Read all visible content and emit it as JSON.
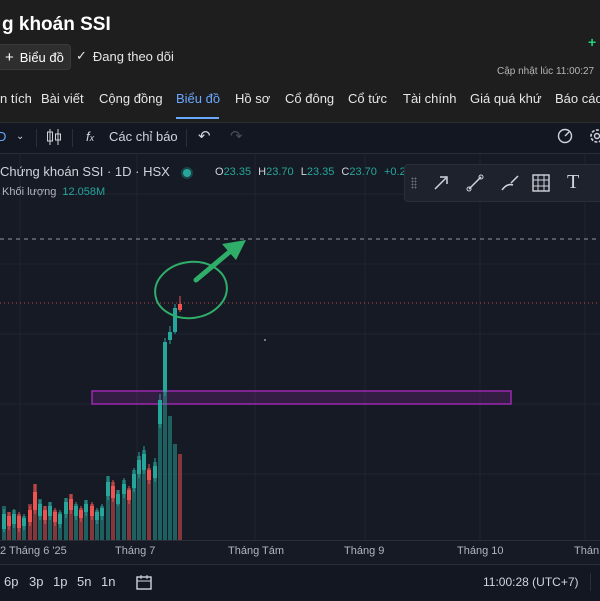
{
  "header": {
    "title": "g khoán SSI",
    "chart_button": "Biểu đồ",
    "follow_label": "Đang theo dõi",
    "updated_label": "Cập nhật lúc",
    "updated_time": "11:00:27"
  },
  "tabs": [
    "n tích",
    "Bài viết",
    "Cộng đồng",
    "Biểu đồ",
    "Hồ sơ",
    "Cổ đông",
    "Cổ tức",
    "Tài chính",
    "Giá quá khứ",
    "Báo cáo"
  ],
  "active_tab": "Biểu đồ",
  "toolbar": {
    "indicators_label": "Các chỉ báo"
  },
  "legend": {
    "symbol_line": "Chứng khoán SSI · 1D · HSX",
    "open_label": "O",
    "open": "23.35",
    "high_label": "H",
    "high": "23.70",
    "low_label": "L",
    "low": "23.35",
    "close_label": "C",
    "close": "23.70",
    "change": "+0.2",
    "volume_label": "Khối lượng",
    "volume": "12.058M"
  },
  "time_axis": [
    "2 Tháng 6 '25",
    "Tháng 7",
    "Tháng Tám",
    "Tháng 9",
    "Tháng 10",
    "Thán"
  ],
  "bottom": {
    "ranges": [
      "6p",
      "3p",
      "1p",
      "5n",
      "1n"
    ],
    "clock": "11:00:28 (UTC+7)"
  },
  "colors": {
    "up": "#26a69a",
    "down": "#ef5350",
    "zone_border": "#9c27b0",
    "annotation": "#2fae6a",
    "accent": "#6aa8ff"
  }
}
